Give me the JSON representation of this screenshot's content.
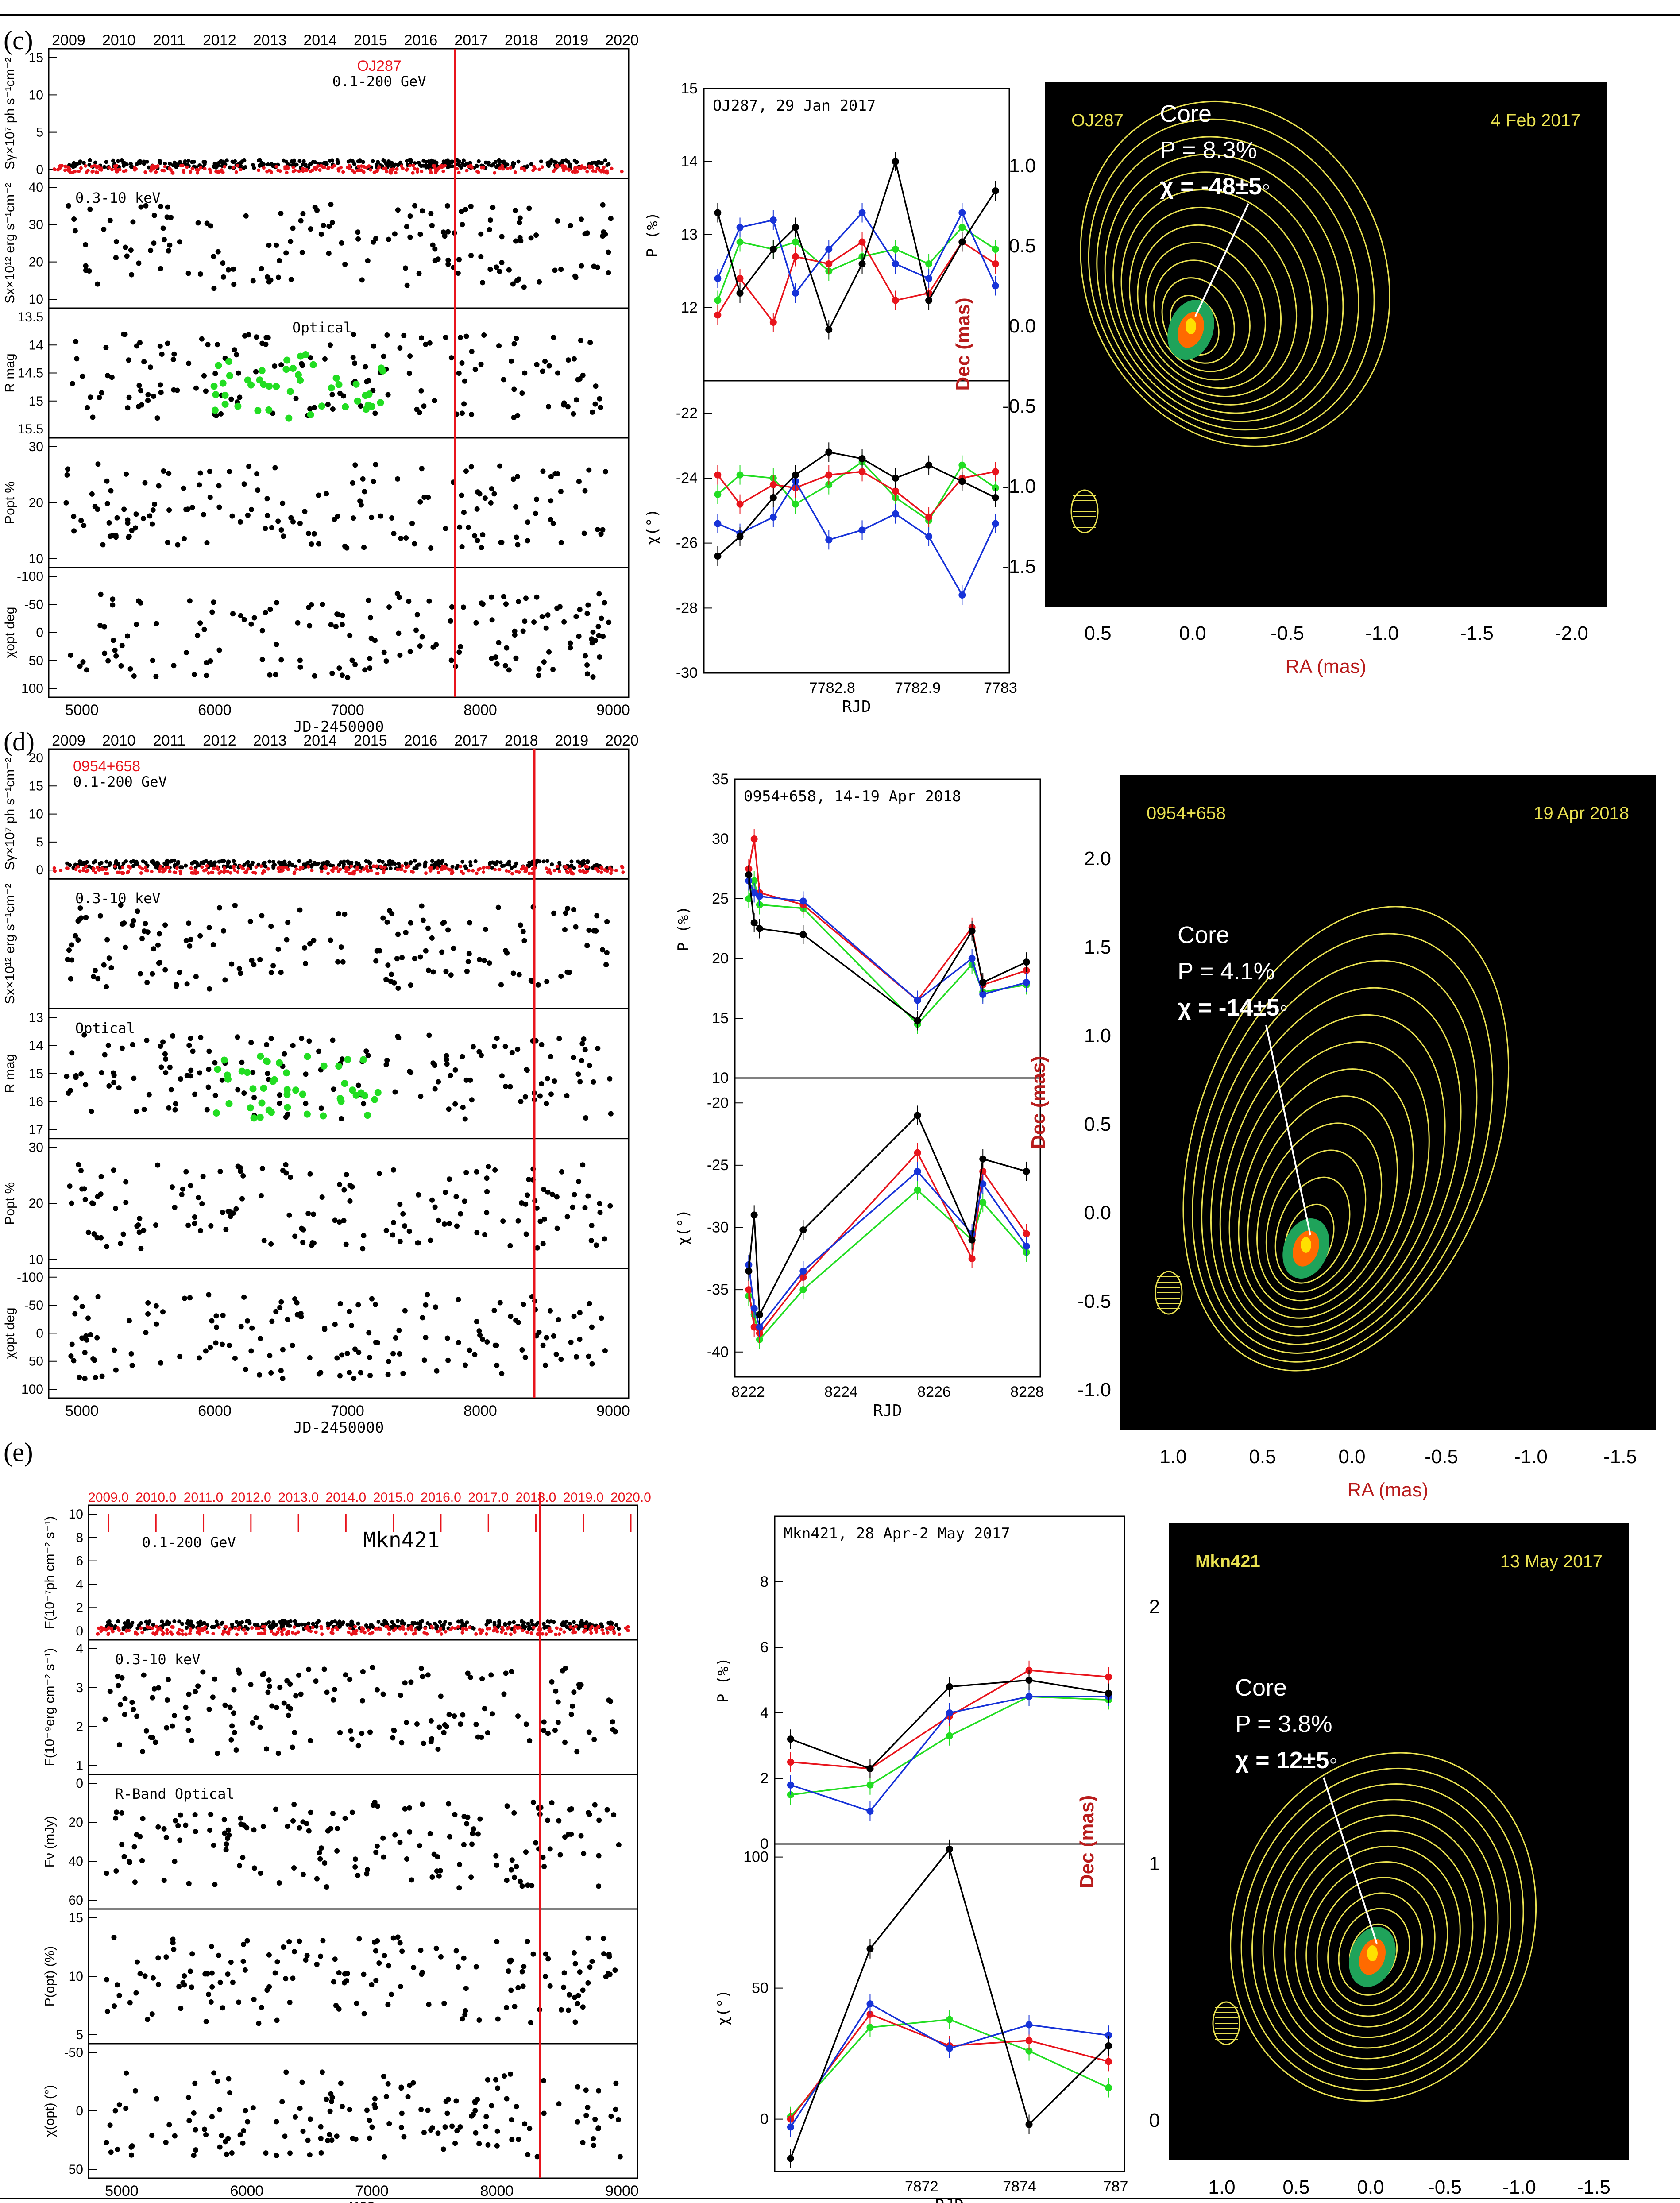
{
  "colors": {
    "red": "#e8141c",
    "green": "#22dd22",
    "blue": "#1733d8",
    "black": "#000000",
    "yellow": "#e8e050",
    "darkred": "#b81c1c"
  },
  "sections": [
    {
      "label": "(c)",
      "lc": {
        "source": "OJ287",
        "band": "0.1-200 GeV",
        "years": [
          "2009",
          "2010",
          "2011",
          "2012",
          "2013",
          "2014",
          "2015",
          "2016",
          "2017",
          "2018",
          "2019",
          "2020"
        ],
        "xlabel": "JD-2450000",
        "xticks": [
          "5000",
          "6000",
          "7000",
          "8000",
          "9000"
        ],
        "panels": [
          {
            "ylabel": "Sγ×10⁷ ph s⁻¹cm⁻²",
            "note": "",
            "yticks": [
              "0",
              "5",
              "10",
              "15"
            ]
          },
          {
            "ylabel": "Sx×10¹² erg s⁻¹cm⁻²",
            "note": "0.3-10 keV",
            "yticks": [
              "10",
              "20",
              "30",
              "40"
            ]
          },
          {
            "ylabel": "R mag",
            "note": "Optical",
            "yticks": [
              "13.5",
              "14",
              "14.5",
              "15",
              "15.5"
            ]
          },
          {
            "ylabel": "Popt %",
            "note": "",
            "yticks": [
              "10",
              "20",
              "30"
            ]
          },
          {
            "ylabel": "χopt deg",
            "note": "",
            "yticks": [
              "100",
              "50",
              "0",
              "-50",
              "-100"
            ]
          }
        ]
      },
      "pol": {
        "title": "OJ287, 29 Jan 2017",
        "xlabel": "RJD",
        "xticks": [
          "7782.8",
          "7782.9",
          "7783"
        ],
        "p_ylabel": "P (%)",
        "p_ticks": [
          "12",
          "13",
          "14",
          "15"
        ],
        "chi_ylabel": "χ(°)",
        "chi_ticks": [
          "-22",
          "-24",
          "-26",
          "-28",
          "-30"
        ]
      },
      "vlbi": {
        "source": "OJ287",
        "date": "4 Feb 2017",
        "core": "Core",
        "p": "P = 8.3%",
        "chi": "χ =  -48±5◦",
        "xlabel": "RA (mas)",
        "ylabel": "Dec (mas)",
        "xticks": [
          "0.5",
          "0.0",
          "-0.5",
          "-1.0",
          "-1.5",
          "-2.0"
        ],
        "yticks": [
          "1.0",
          "0.5",
          "0.0",
          "-0.5",
          "-1.0",
          "-1.5"
        ]
      }
    },
    {
      "label": "(d)",
      "lc": {
        "source": "0954+658",
        "band": "0.1-200 GeV",
        "years": [
          "2009",
          "2010",
          "2011",
          "2012",
          "2013",
          "2014",
          "2015",
          "2016",
          "2017",
          "2018",
          "2019",
          "2020"
        ],
        "xlabel": "JD-2450000",
        "xticks": [
          "5000",
          "6000",
          "7000",
          "8000",
          "9000"
        ],
        "panels": [
          {
            "ylabel": "Sγ×10⁷ ph s⁻¹cm⁻²",
            "note": "",
            "yticks": [
              "0",
              "5",
              "10",
              "15",
              "20"
            ]
          },
          {
            "ylabel": "Sx×10¹² erg s⁻¹cm⁻²",
            "note": "0.3-10 keV",
            "yticks": []
          },
          {
            "ylabel": "R mag",
            "note": "Optical",
            "yticks": [
              "13",
              "14",
              "15",
              "16",
              "17"
            ]
          },
          {
            "ylabel": "Popt %",
            "note": "",
            "yticks": [
              "10",
              "20",
              "30"
            ]
          },
          {
            "ylabel": "χopt deg",
            "note": "",
            "yticks": [
              "100",
              "50",
              "0",
              "-50",
              "-100"
            ]
          }
        ]
      },
      "pol": {
        "title": "0954+658, 14-19 Apr 2018",
        "xlabel": "RJD",
        "xticks": [
          "8222",
          "8224",
          "8226",
          "8228"
        ],
        "p_ylabel": "P (%)",
        "p_ticks": [
          "10",
          "15",
          "20",
          "25",
          "30",
          "35"
        ],
        "chi_ylabel": "χ(°)",
        "chi_ticks": [
          "-20",
          "-25",
          "-30",
          "-35",
          "-40"
        ]
      },
      "vlbi": {
        "source": "0954+658",
        "date": "19 Apr 2018",
        "core": "Core",
        "p": "P = 4.1%",
        "chi": "χ = -14±5◦",
        "xlabel": "RA (mas)",
        "ylabel": "Dec (mas)",
        "xticks": [
          "1.0",
          "0.5",
          "0.0",
          "-0.5",
          "-1.0",
          "-1.5"
        ],
        "yticks": [
          "2.0",
          "1.5",
          "1.0",
          "0.5",
          "0.0",
          "-0.5",
          "-1.0"
        ]
      }
    },
    {
      "label": "(e)",
      "lc": {
        "source": "Mkn421",
        "band": "0.1-200 GeV",
        "years": [
          "2009.0",
          "2010.0",
          "2011.0",
          "2012.0",
          "2013.0",
          "2014.0",
          "2015.0",
          "2016.0",
          "2017.0",
          "2018.0",
          "2019.0",
          "2020.0"
        ],
        "xlabel": "MJD",
        "xticks": [
          "5000",
          "6000",
          "7000",
          "8000",
          "9000"
        ],
        "panels": [
          {
            "ylabel": "F(10⁻⁷ph cm⁻² s⁻¹)",
            "note": "",
            "yticks": [
              "0",
              "2",
              "4",
              "6",
              "8",
              "10"
            ]
          },
          {
            "ylabel": "F(10⁻⁹erg cm⁻² s⁻¹)",
            "note": "0.3-10 keV",
            "yticks": [
              "1",
              "2",
              "3",
              "4"
            ]
          },
          {
            "ylabel": "Fν (mJy)",
            "note": "R-Band Optical",
            "yticks": [
              "0",
              "20",
              "40",
              "60"
            ]
          },
          {
            "ylabel": "P(opt) (%)",
            "note": "",
            "yticks": [
              "5",
              "10",
              "15"
            ]
          },
          {
            "ylabel": "χ(opt) (°)",
            "note": "",
            "yticks": [
              "50",
              "0",
              "-50"
            ]
          }
        ]
      },
      "pol": {
        "title": "Mkn421, 28 Apr-2 May 2017",
        "xlabel": "RJD",
        "xticks": [
          "7872",
          "7874",
          "787"
        ],
        "p_ylabel": "P (%)",
        "p_ticks": [
          "0",
          "2",
          "4",
          "6",
          "8"
        ],
        "chi_ylabel": "χ(°)",
        "chi_ticks": [
          "0",
          "50",
          "100"
        ]
      },
      "vlbi": {
        "source": "Mkn421",
        "date": "13 May 2017",
        "core": "Core",
        "p": "P = 3.8%",
        "chi": "χ =  12±5◦",
        "xlabel": "RA (mas)",
        "ylabel": "Dec (mas)",
        "xticks": [
          "1.0",
          "0.5",
          "0.0",
          "-0.5",
          "-1.0",
          "-1.5"
        ],
        "yticks": [
          "2",
          "1",
          "0"
        ]
      }
    }
  ],
  "chart_data": [
    {
      "type": "line",
      "title": "OJ287, 29 Jan 2017",
      "xlabel": "RJD",
      "ylabel": "P (%)",
      "ylim": [
        11,
        15
      ],
      "x": [
        7782.73,
        7782.75,
        7782.78,
        7782.8,
        7782.83,
        7782.86,
        7782.89,
        7782.92,
        7782.95,
        7782.98
      ],
      "series": [
        {
          "name": "black",
          "values": [
            13.3,
            12.2,
            12.8,
            13.1,
            11.7,
            12.6,
            14.0,
            12.1,
            12.9,
            13.6
          ]
        },
        {
          "name": "red",
          "values": [
            11.9,
            12.4,
            11.8,
            12.7,
            12.6,
            12.9,
            12.1,
            12.2,
            12.9,
            12.6
          ]
        },
        {
          "name": "green",
          "values": [
            12.1,
            12.9,
            12.8,
            12.9,
            12.5,
            12.7,
            12.8,
            12.6,
            13.1,
            12.8
          ]
        },
        {
          "name": "blue",
          "values": [
            12.4,
            13.1,
            13.2,
            12.2,
            12.8,
            13.3,
            12.6,
            12.4,
            13.3,
            12.3
          ]
        }
      ]
    },
    {
      "type": "line",
      "title": "OJ287, 29 Jan 2017",
      "xlabel": "RJD",
      "ylabel": "χ(°)",
      "ylim": [
        -30,
        -21
      ],
      "x": [
        7782.73,
        7782.75,
        7782.78,
        7782.8,
        7782.83,
        7782.86,
        7782.89,
        7782.92,
        7782.95,
        7782.98
      ],
      "series": [
        {
          "name": "black",
          "values": [
            -26.4,
            -25.8,
            -24.6,
            -23.9,
            -23.2,
            -23.4,
            -24.0,
            -23.6,
            -24.1,
            -24.6
          ]
        },
        {
          "name": "red",
          "values": [
            -23.9,
            -24.8,
            -24.2,
            -24.3,
            -23.9,
            -23.8,
            -24.4,
            -25.2,
            -24.0,
            -23.8
          ]
        },
        {
          "name": "green",
          "values": [
            -24.5,
            -23.9,
            -24.0,
            -24.8,
            -24.2,
            -23.5,
            -24.6,
            -25.3,
            -23.6,
            -24.3
          ]
        },
        {
          "name": "blue",
          "values": [
            -25.4,
            -25.7,
            -25.2,
            -24.1,
            -25.9,
            -25.6,
            -25.1,
            -25.8,
            -27.6,
            -25.4
          ]
        }
      ]
    },
    {
      "type": "line",
      "title": "0954+658, 14-19 Apr 2018",
      "xlabel": "RJD",
      "ylabel": "P (%)",
      "ylim": [
        10,
        35
      ],
      "x": [
        8222.7,
        8222.8,
        8222.9,
        8223.7,
        8225.8,
        8226.8,
        8227.0,
        8227.8
      ],
      "series": [
        {
          "name": "black",
          "values": [
            27.0,
            23.0,
            22.5,
            22.0,
            14.8,
            22.3,
            18.0,
            19.7
          ]
        },
        {
          "name": "red",
          "values": [
            27.5,
            30.0,
            25.5,
            24.5,
            16.5,
            22.6,
            17.8,
            19.0
          ]
        },
        {
          "name": "green",
          "values": [
            25.0,
            26.5,
            24.5,
            24.2,
            14.5,
            19.5,
            17.2,
            17.8
          ]
        },
        {
          "name": "blue",
          "values": [
            26.5,
            25.5,
            25.2,
            24.8,
            16.5,
            20.0,
            17.0,
            18.0
          ]
        }
      ]
    },
    {
      "type": "line",
      "title": "0954+658, 14-19 Apr 2018",
      "xlabel": "RJD",
      "ylabel": "χ(°)",
      "ylim": [
        -42,
        -18
      ],
      "x": [
        8222.7,
        8222.8,
        8222.9,
        8223.7,
        8225.8,
        8226.8,
        8227.0,
        8227.8
      ],
      "series": [
        {
          "name": "black",
          "values": [
            -33.5,
            -29.0,
            -37.0,
            -30.2,
            -21.0,
            -31.0,
            -24.5,
            -25.5
          ]
        },
        {
          "name": "red",
          "values": [
            -35.0,
            -38.0,
            -38.5,
            -34.0,
            -24.0,
            -32.5,
            -25.5,
            -30.5
          ]
        },
        {
          "name": "green",
          "values": [
            -35.5,
            -37.0,
            -39.0,
            -35.0,
            -27.0,
            -31.0,
            -28.0,
            -32.0
          ]
        },
        {
          "name": "blue",
          "values": [
            -33.0,
            -36.5,
            -38.0,
            -33.5,
            -25.5,
            -30.5,
            -26.5,
            -31.5
          ]
        }
      ]
    },
    {
      "type": "line",
      "title": "Mkn421, 28 Apr-2 May 2017",
      "xlabel": "RJD",
      "ylabel": "P (%)",
      "ylim": [
        0,
        10
      ],
      "x": [
        7871.8,
        7872.8,
        7873.8,
        7874.8,
        7875.8
      ],
      "series": [
        {
          "name": "black",
          "values": [
            3.2,
            2.3,
            4.8,
            5.0,
            4.6
          ]
        },
        {
          "name": "red",
          "values": [
            2.5,
            2.3,
            3.9,
            5.3,
            5.1
          ]
        },
        {
          "name": "green",
          "values": [
            1.5,
            1.8,
            3.3,
            4.5,
            4.4
          ]
        },
        {
          "name": "blue",
          "values": [
            1.8,
            1.0,
            4.0,
            4.5,
            4.5
          ]
        }
      ]
    },
    {
      "type": "line",
      "title": "Mkn421, 28 Apr-2 May 2017",
      "xlabel": "RJD",
      "ylabel": "χ(°)",
      "ylim": [
        -20,
        105
      ],
      "x": [
        7871.8,
        7872.8,
        7873.8,
        7874.8,
        7875.8
      ],
      "series": [
        {
          "name": "black",
          "values": [
            -15,
            65,
            103,
            -2,
            28
          ]
        },
        {
          "name": "red",
          "values": [
            0,
            40,
            28,
            30,
            22
          ]
        },
        {
          "name": "green",
          "values": [
            1,
            35,
            38,
            26,
            12
          ]
        },
        {
          "name": "blue",
          "values": [
            -3,
            44,
            27,
            36,
            32
          ]
        }
      ]
    }
  ]
}
